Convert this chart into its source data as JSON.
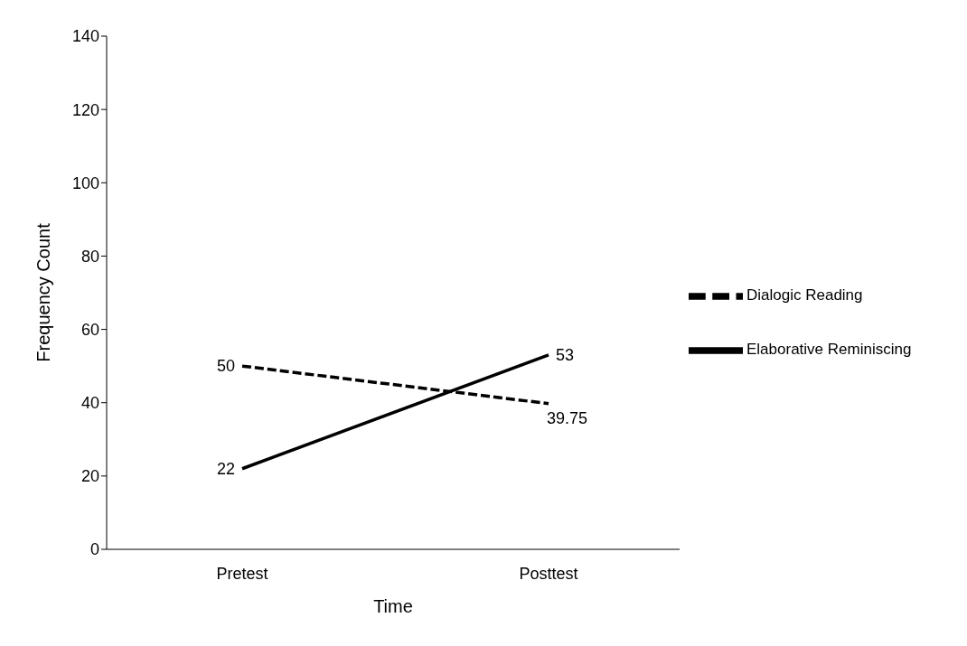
{
  "chart_data": {
    "type": "line",
    "xlabel": "Time",
    "ylabel": "Frequency Count",
    "categories": [
      "Pretest",
      "Posttest"
    ],
    "series": [
      {
        "name": "Dialogic Reading",
        "color": "#000000",
        "values": [
          50,
          39.75
        ],
        "line_style": "dashed"
      },
      {
        "name": "Elaborative Reminiscing",
        "color": "#000000",
        "values": [
          22,
          53
        ],
        "line_style": "solid"
      }
    ],
    "ylim": [
      0,
      140
    ],
    "yticks": [
      0,
      20,
      40,
      60,
      80,
      100,
      120,
      140
    ],
    "grid": false,
    "legend": "right",
    "marker": "none",
    "data_labels": true
  }
}
